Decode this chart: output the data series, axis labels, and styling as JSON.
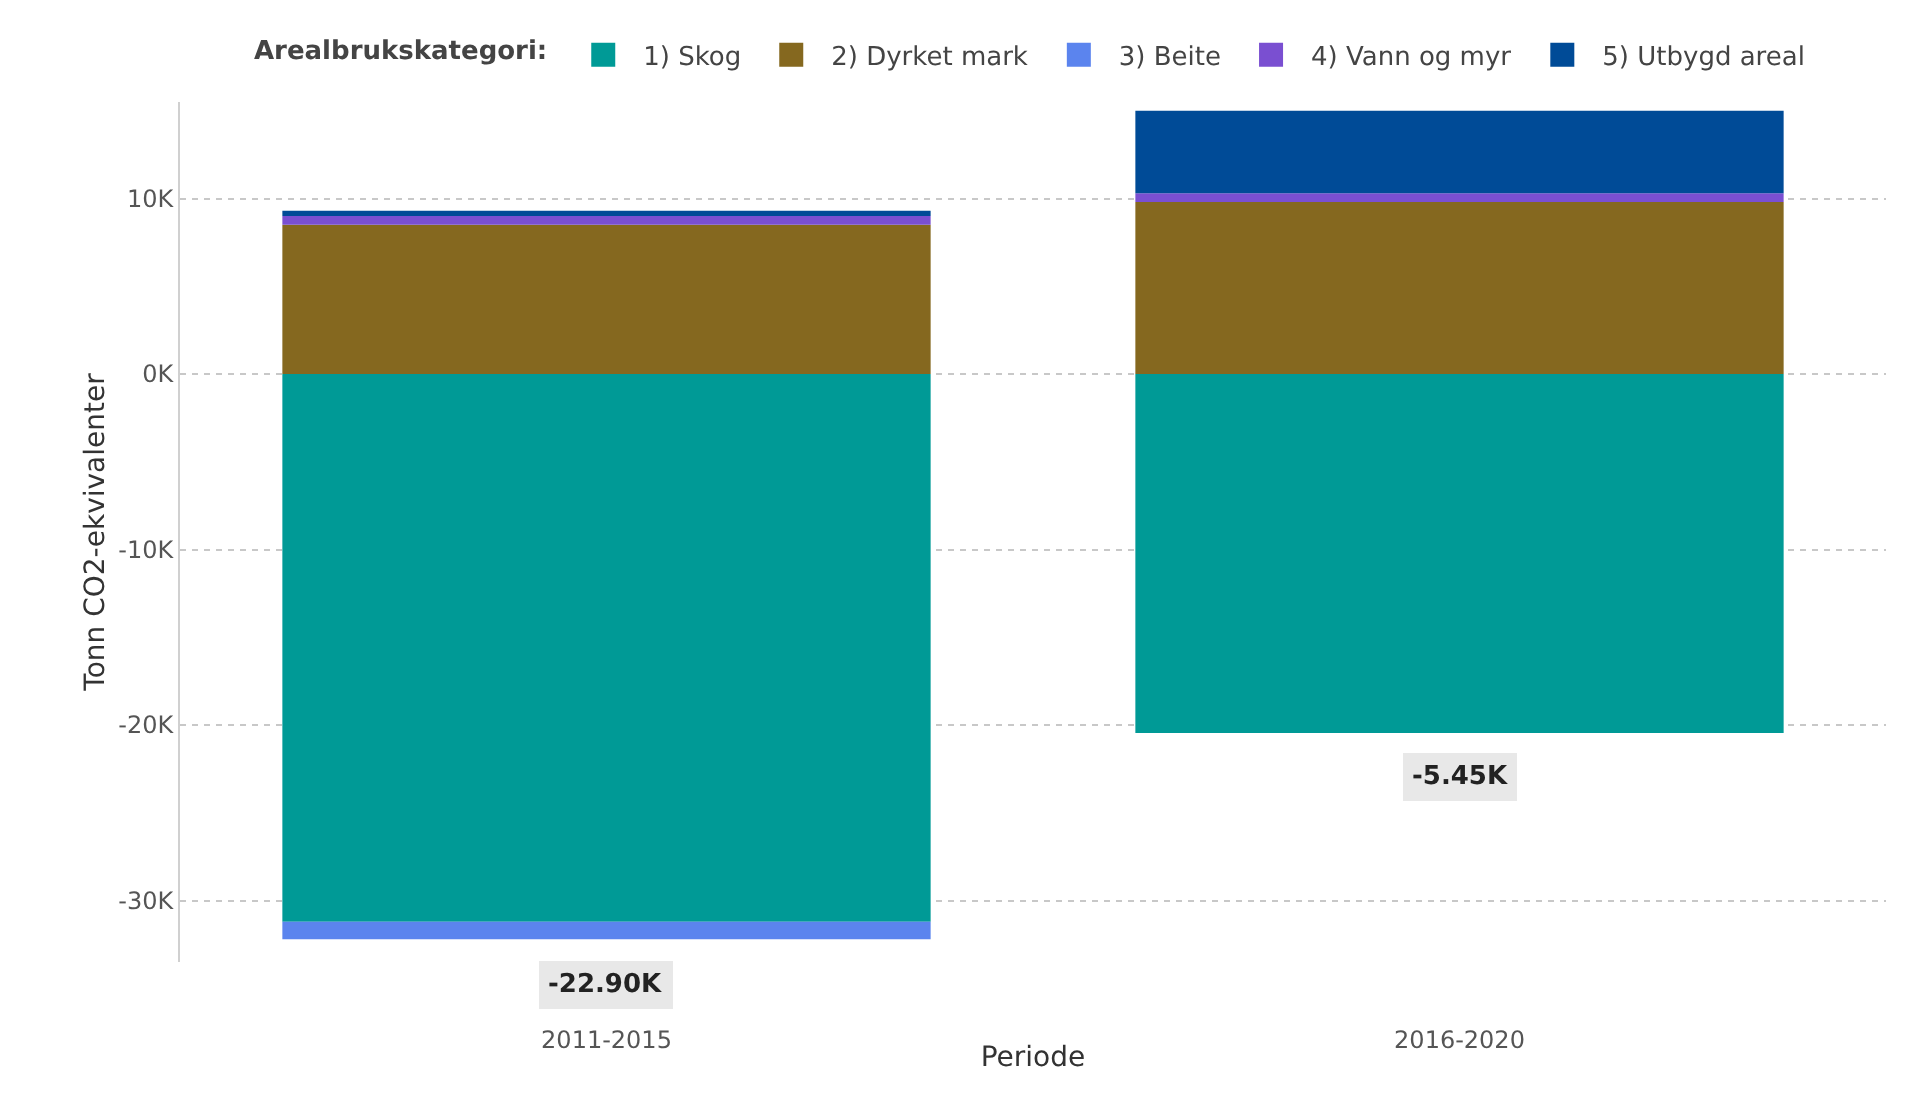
{
  "chart_data": {
    "type": "bar",
    "stacked": true,
    "categories": [
      "2011-2015",
      "2016-2020"
    ],
    "series": [
      {
        "name": "1) Skog",
        "color": "#009a96",
        "values": [
          -31200,
          -20450
        ]
      },
      {
        "name": "2) Dyrket mark",
        "color": "#85681f",
        "values": [
          8500,
          9800
        ]
      },
      {
        "name": "3) Beite",
        "color": "#5b84ee",
        "values": [
          -1000,
          null
        ]
      },
      {
        "name": "4) Vann og myr",
        "color": "#7a4fd1",
        "values": [
          500,
          500
        ]
      },
      {
        "name": "5) Utbygd areal",
        "color": "#004b97",
        "values": [
          300,
          4700
        ]
      }
    ],
    "totals": [
      "-22.90K",
      "-5.45K"
    ],
    "xlabel": "Periode",
    "ylabel": "Tonn CO2-ekvivalenter",
    "legend_title": "Arealbrukskategori:",
    "ylim": [
      -33500,
      15500
    ],
    "yticks": [
      {
        "value": -30000,
        "label": "-30K"
      },
      {
        "value": -20000,
        "label": "-20K"
      },
      {
        "value": -10000,
        "label": "-10K"
      },
      {
        "value": 0,
        "label": "0K"
      },
      {
        "value": 10000,
        "label": "10K"
      }
    ],
    "grid": "y",
    "legend": "top"
  }
}
